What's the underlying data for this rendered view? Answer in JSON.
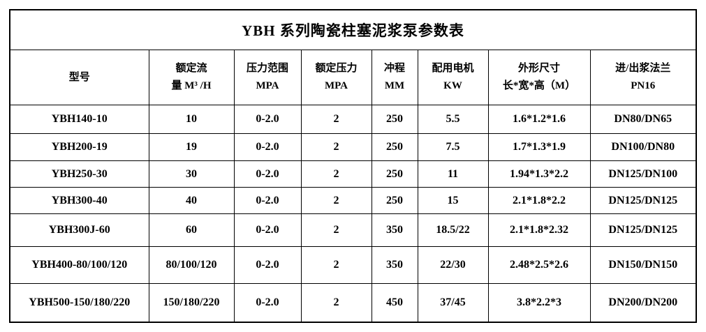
{
  "table": {
    "title": "YBH 系列陶瓷柱塞泥浆泵参数表",
    "columns": [
      {
        "name": "model",
        "line1": "型号",
        "line2": ""
      },
      {
        "name": "rated-flow",
        "line1": "额定流",
        "line2": "量 M³ /H"
      },
      {
        "name": "pressure-range",
        "line1": "压力范围",
        "line2": "MPA"
      },
      {
        "name": "rated-pressure",
        "line1": "额定压力",
        "line2": "MPA"
      },
      {
        "name": "stroke",
        "line1": "冲程",
        "line2": "MM"
      },
      {
        "name": "motor",
        "line1": "配用电机",
        "line2": "KW"
      },
      {
        "name": "dimensions",
        "line1": "外形尺寸",
        "line2": "长*宽*高（M）"
      },
      {
        "name": "flange",
        "line1": "进/出浆法兰",
        "line2": "PN16"
      }
    ],
    "rows": [
      [
        "YBH140-10",
        "10",
        "0-2.0",
        "2",
        "250",
        "5.5",
        "1.6*1.2*1.6",
        "DN80/DN65"
      ],
      [
        "YBH200-19",
        "19",
        "0-2.0",
        "2",
        "250",
        "7.5",
        "1.7*1.3*1.9",
        "DN100/DN80"
      ],
      [
        "YBH250-30",
        "30",
        "0-2.0",
        "2",
        "250",
        "11",
        "1.94*1.3*2.2",
        "DN125/DN100"
      ],
      [
        "YBH300-40",
        "40",
        "0-2.0",
        "2",
        "250",
        "15",
        "2.1*1.8*2.2",
        "DN125/DN125"
      ],
      [
        "YBH300J-60",
        "60",
        "0-2.0",
        "2",
        "350",
        "18.5/22",
        "2.1*1.8*2.32",
        "DN125/DN125"
      ],
      [
        "YBH400-80/100/120",
        "80/100/120",
        "0-2.0",
        "2",
        "350",
        "22/30",
        "2.48*2.5*2.6",
        "DN150/DN150"
      ],
      [
        "YBH500-150/180/220",
        "150/180/220",
        "0-2.0",
        "2",
        "450",
        "37/45",
        "3.8*2.2*3",
        "DN200/DN200"
      ]
    ],
    "colors": {
      "border": "#000000",
      "text": "#000000",
      "background": "#ffffff"
    }
  }
}
